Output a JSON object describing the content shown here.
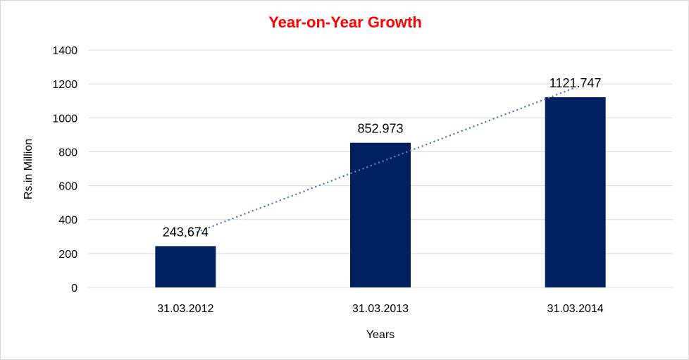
{
  "chart_data": {
    "type": "bar",
    "title": "Year-on-Year Growth",
    "xlabel": "Years",
    "ylabel": "Rs.in Million",
    "categories": [
      "31.03.2012",
      "31.03.2013",
      "31.03.2014"
    ],
    "values": [
      243.674,
      852.973,
      1121.747
    ],
    "data_labels": [
      "243.674",
      "852.973",
      "1121.747"
    ],
    "ylim": [
      0,
      1400
    ],
    "yticks": [
      0,
      200,
      400,
      600,
      800,
      1000,
      1200,
      1400
    ],
    "grid": true,
    "trendline": "linear",
    "colors": {
      "bar": "#002060",
      "trendline": "#4f81bd",
      "title": "#ff0000",
      "grid": "#d9d9d9"
    }
  }
}
